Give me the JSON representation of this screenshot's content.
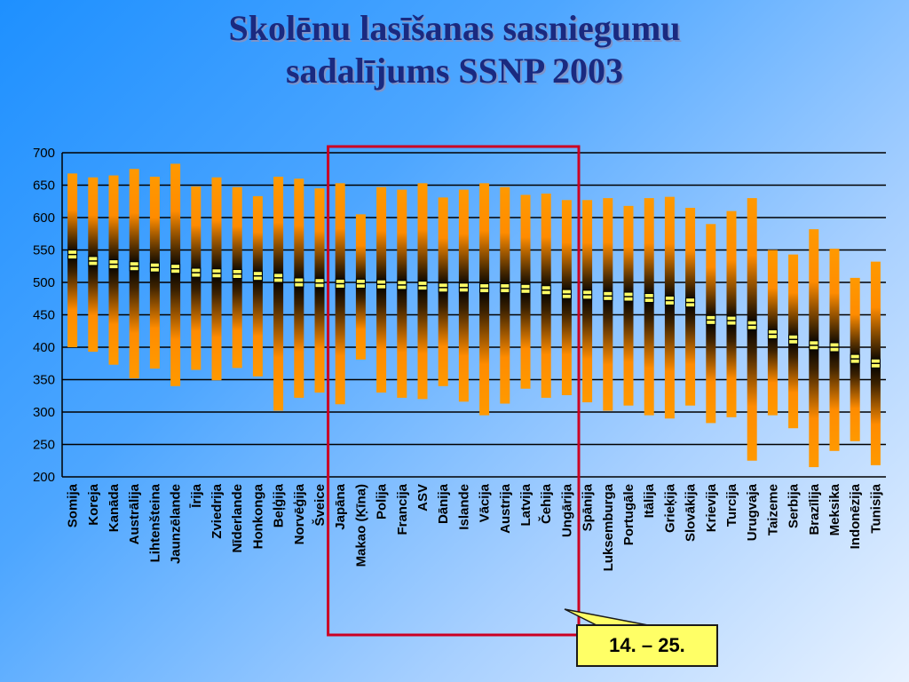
{
  "title_line1": "Skolēnu lasīšanas sasniegumu",
  "title_line2": "sadalījums SSNP 2003",
  "callout_text": "14. – 25.",
  "colors": {
    "bar_light": "#ff9900",
    "bar_dark": "#000000",
    "mean_marker": "#ffff66",
    "highlight_box": "#cc0022"
  },
  "chart_data": {
    "type": "range-bar",
    "ylim": [
      200,
      700
    ],
    "yticks": [
      200,
      250,
      300,
      350,
      400,
      450,
      500,
      550,
      600,
      650,
      700
    ],
    "grid": true,
    "highlight_range": [
      14,
      25
    ],
    "categories": [
      "Somija",
      "Koreja",
      "Kanāda",
      "Austrālija",
      "Lihtenšteina",
      "Jaunzēlande",
      "Īrija",
      "Zviedrija",
      "Nīderlande",
      "Honkonga",
      "Beļģija",
      "Norvēģija",
      "Šveice",
      "Japāna",
      "Makao (Ķīna)",
      "Polija",
      "Francija",
      "ASV",
      "Dānija",
      "Islande",
      "Vācija",
      "Austrija",
      "Latvija",
      "Čehija",
      "Ungārija",
      "Spānija",
      "Luksemburga",
      "Portugāle",
      "Itālija",
      "Grieķija",
      "Slovākija",
      "Krievija",
      "Turcija",
      "Urugvaja",
      "Taizeme",
      "Serbija",
      "Brazīlija",
      "Meksika",
      "Indonēzija",
      "Tunisija"
    ],
    "series": [
      {
        "values_low": [
          400,
          393,
          373,
          352,
          367,
          340,
          365,
          349,
          368,
          355,
          302,
          322,
          330,
          312,
          381,
          330,
          322,
          320,
          340,
          316,
          295,
          313,
          336,
          322,
          326,
          315,
          302,
          310,
          295,
          290,
          310,
          283,
          292,
          225,
          295,
          275,
          215,
          240,
          255,
          218
        ]
      },
      {
        "values_high": [
          668,
          662,
          665,
          675,
          663,
          683,
          648,
          662,
          647,
          633,
          663,
          660,
          645,
          653,
          605,
          647,
          643,
          653,
          631,
          643,
          653,
          647,
          635,
          637,
          627,
          627,
          630,
          618,
          630,
          632,
          615,
          590,
          610,
          630,
          550,
          543,
          582,
          552,
          507,
          532
        ]
      },
      {
        "values_mean": [
          543,
          533,
          528,
          525,
          523,
          521,
          515,
          514,
          513,
          510,
          507,
          500,
          499,
          498,
          498,
          497,
          496,
          495,
          492,
          492,
          491,
          491,
          490,
          488,
          482,
          481,
          479,
          478,
          476,
          472,
          469,
          442,
          441,
          434,
          420,
          412,
          403,
          400,
          382,
          375
        ]
      }
    ]
  }
}
